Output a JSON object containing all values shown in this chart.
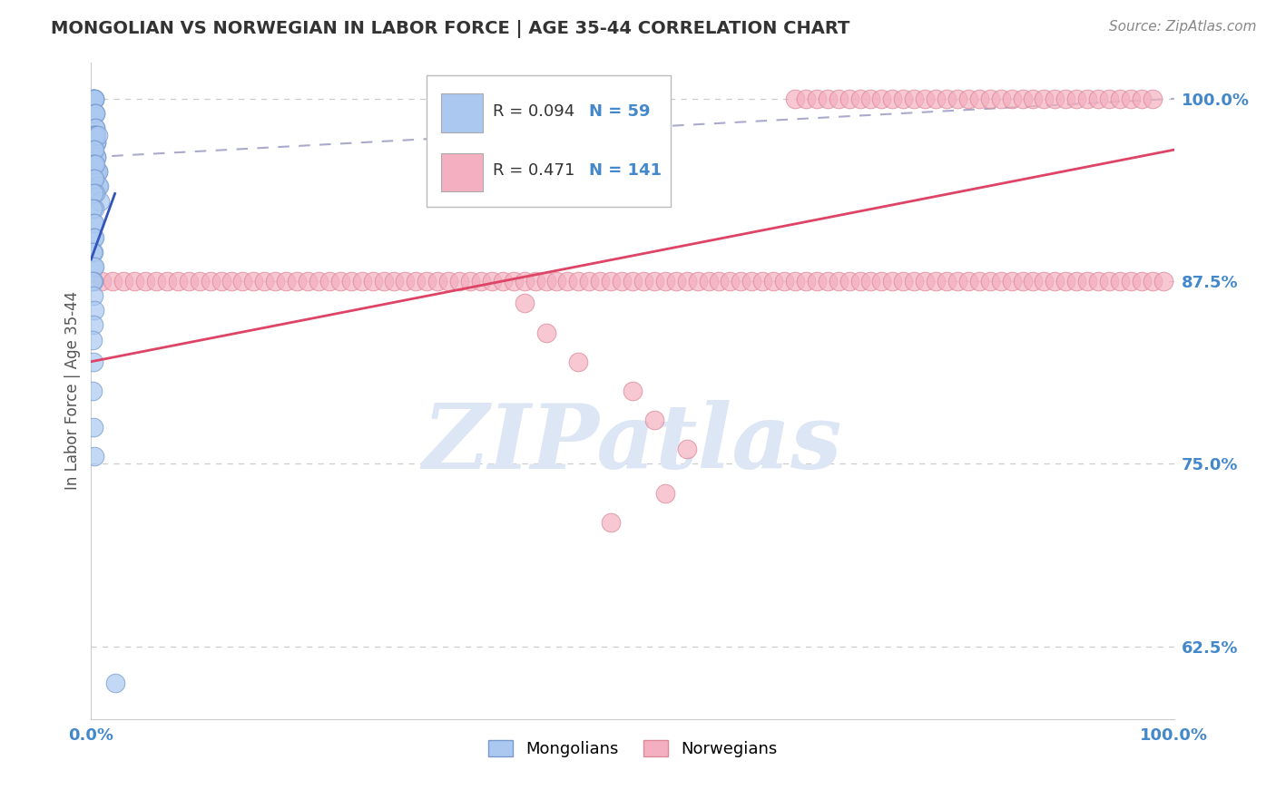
{
  "title": "MONGOLIAN VS NORWEGIAN IN LABOR FORCE | AGE 35-44 CORRELATION CHART",
  "source_text": "Source: ZipAtlas.com",
  "ylabel": "In Labor Force | Age 35-44",
  "legend_R_N": [
    {
      "label": "Mongolians",
      "R": "0.094",
      "N": "59",
      "fill_color": "#aac8f0",
      "edge_color": "#7799cc"
    },
    {
      "label": "Norwegians",
      "R": "0.471",
      "N": "141",
      "fill_color": "#f4b0c0",
      "edge_color": "#dd8899"
    }
  ],
  "mongolian_color": "#aac8f0",
  "mongolian_edge": "#7799cc",
  "norwegian_color": "#f4b0c0",
  "norwegian_edge": "#dd8899",
  "trend_mongolian_color": "#3355bb",
  "trend_norwegian_color": "#dd4466",
  "ref_line_color": "#aaaacc",
  "background_color": "#ffffff",
  "title_color": "#333333",
  "source_color": "#888888",
  "axis_label_color": "#555555",
  "tick_color": "#4488cc",
  "watermark_color": "#dce6f5",
  "xlim": [
    0.0,
    1.0
  ],
  "ylim": [
    0.575,
    1.025
  ],
  "y_ticks": [
    0.625,
    0.75,
    0.875,
    1.0
  ],
  "y_tick_labels": [
    "62.5%",
    "75.0%",
    "87.5%",
    "100.0%"
  ],
  "mongolian_x": [
    0.001,
    0.002,
    0.002,
    0.003,
    0.003,
    0.003,
    0.003,
    0.004,
    0.004,
    0.004,
    0.004,
    0.004,
    0.005,
    0.005,
    0.005,
    0.005,
    0.005,
    0.006,
    0.006,
    0.006,
    0.007,
    0.008,
    0.002,
    0.003,
    0.003,
    0.004,
    0.005,
    0.006,
    0.002,
    0.003,
    0.001,
    0.002,
    0.003,
    0.004,
    0.002,
    0.003,
    0.004,
    0.002,
    0.003,
    0.001,
    0.002,
    0.003,
    0.002,
    0.003,
    0.002,
    0.001,
    0.002,
    0.003,
    0.002,
    0.001,
    0.002,
    0.003,
    0.002,
    0.001,
    0.002,
    0.001,
    0.002,
    0.003,
    0.022
  ],
  "mongolian_y": [
    1.0,
    1.0,
    1.0,
    1.0,
    1.0,
    1.0,
    0.99,
    0.99,
    0.99,
    0.98,
    0.98,
    0.97,
    0.97,
    0.97,
    0.96,
    0.96,
    0.95,
    0.95,
    0.95,
    0.94,
    0.94,
    0.93,
    0.975,
    0.975,
    0.975,
    0.975,
    0.975,
    0.975,
    0.965,
    0.965,
    0.955,
    0.955,
    0.955,
    0.955,
    0.945,
    0.945,
    0.935,
    0.935,
    0.925,
    0.925,
    0.915,
    0.915,
    0.905,
    0.905,
    0.895,
    0.895,
    0.885,
    0.885,
    0.875,
    0.875,
    0.865,
    0.855,
    0.845,
    0.835,
    0.82,
    0.8,
    0.775,
    0.755,
    0.6
  ],
  "norwegian_x": [
    0.01,
    0.02,
    0.03,
    0.04,
    0.05,
    0.06,
    0.07,
    0.08,
    0.09,
    0.1,
    0.11,
    0.12,
    0.13,
    0.14,
    0.15,
    0.16,
    0.17,
    0.18,
    0.19,
    0.2,
    0.21,
    0.22,
    0.23,
    0.24,
    0.25,
    0.26,
    0.27,
    0.28,
    0.29,
    0.3,
    0.31,
    0.32,
    0.33,
    0.34,
    0.35,
    0.36,
    0.37,
    0.38,
    0.39,
    0.4,
    0.41,
    0.42,
    0.43,
    0.44,
    0.45,
    0.46,
    0.47,
    0.48,
    0.49,
    0.5,
    0.51,
    0.52,
    0.53,
    0.54,
    0.55,
    0.56,
    0.57,
    0.58,
    0.59,
    0.6,
    0.61,
    0.62,
    0.63,
    0.64,
    0.65,
    0.66,
    0.67,
    0.68,
    0.69,
    0.7,
    0.71,
    0.72,
    0.73,
    0.74,
    0.75,
    0.76,
    0.77,
    0.78,
    0.79,
    0.8,
    0.81,
    0.82,
    0.83,
    0.84,
    0.85,
    0.86,
    0.87,
    0.88,
    0.89,
    0.9,
    0.91,
    0.92,
    0.93,
    0.94,
    0.95,
    0.96,
    0.97,
    0.98,
    0.99,
    0.65,
    0.66,
    0.67,
    0.68,
    0.69,
    0.7,
    0.71,
    0.72,
    0.73,
    0.74,
    0.75,
    0.76,
    0.77,
    0.78,
    0.79,
    0.8,
    0.81,
    0.82,
    0.83,
    0.84,
    0.85,
    0.86,
    0.87,
    0.88,
    0.89,
    0.9,
    0.91,
    0.92,
    0.93,
    0.94,
    0.95,
    0.96,
    0.97,
    0.98,
    0.4,
    0.42,
    0.45,
    0.5,
    0.52,
    0.55,
    0.48,
    0.53
  ],
  "norwegian_y": [
    0.875,
    0.875,
    0.875,
    0.875,
    0.875,
    0.875,
    0.875,
    0.875,
    0.875,
    0.875,
    0.875,
    0.875,
    0.875,
    0.875,
    0.875,
    0.875,
    0.875,
    0.875,
    0.875,
    0.875,
    0.875,
    0.875,
    0.875,
    0.875,
    0.875,
    0.875,
    0.875,
    0.875,
    0.875,
    0.875,
    0.875,
    0.875,
    0.875,
    0.875,
    0.875,
    0.875,
    0.875,
    0.875,
    0.875,
    0.875,
    0.875,
    0.875,
    0.875,
    0.875,
    0.875,
    0.875,
    0.875,
    0.875,
    0.875,
    0.875,
    0.875,
    0.875,
    0.875,
    0.875,
    0.875,
    0.875,
    0.875,
    0.875,
    0.875,
    0.875,
    0.875,
    0.875,
    0.875,
    0.875,
    0.875,
    0.875,
    0.875,
    0.875,
    0.875,
    0.875,
    0.875,
    0.875,
    0.875,
    0.875,
    0.875,
    0.875,
    0.875,
    0.875,
    0.875,
    0.875,
    0.875,
    0.875,
    0.875,
    0.875,
    0.875,
    0.875,
    0.875,
    0.875,
    0.875,
    0.875,
    0.875,
    0.875,
    0.875,
    0.875,
    0.875,
    0.875,
    0.875,
    0.875,
    0.875,
    1.0,
    1.0,
    1.0,
    1.0,
    1.0,
    1.0,
    1.0,
    1.0,
    1.0,
    1.0,
    1.0,
    1.0,
    1.0,
    1.0,
    1.0,
    1.0,
    1.0,
    1.0,
    1.0,
    1.0,
    1.0,
    1.0,
    1.0,
    1.0,
    1.0,
    1.0,
    1.0,
    1.0,
    1.0,
    1.0,
    1.0,
    1.0,
    1.0,
    1.0,
    0.86,
    0.84,
    0.82,
    0.8,
    0.78,
    0.76,
    0.71,
    0.73
  ],
  "trend_norwegian_x0": 0.0,
  "trend_norwegian_x1": 1.0,
  "trend_norwegian_y0": 0.82,
  "trend_norwegian_y1": 0.965,
  "trend_mongolian_x0": 0.0,
  "trend_mongolian_x1": 0.022,
  "trend_mongolian_y0": 0.89,
  "trend_mongolian_y1": 0.935,
  "ref_line_x0": 0.0,
  "ref_line_x1": 1.0,
  "ref_line_y0": 0.96,
  "ref_line_y1": 1.0
}
